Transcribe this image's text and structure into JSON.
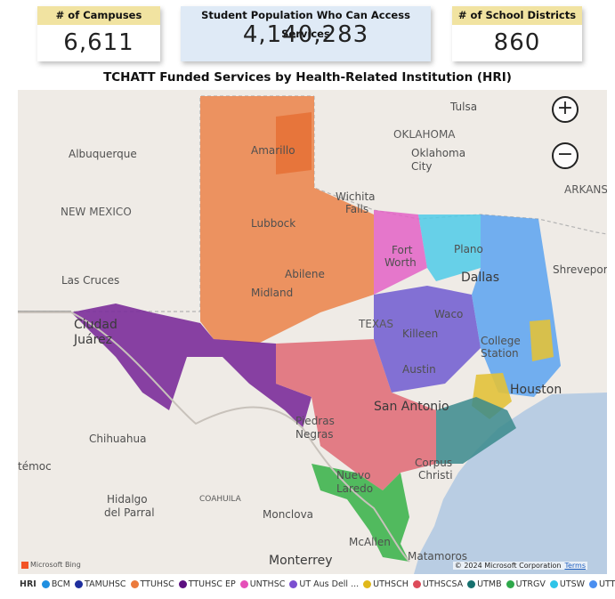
{
  "kpis": {
    "campuses": {
      "label": "# of Campuses",
      "value": "6,611"
    },
    "population": {
      "label": "Student Population Who Can Access Services",
      "value": "4,140,283"
    },
    "districts": {
      "label": "# of School Districts",
      "value": "860"
    }
  },
  "map": {
    "title": "TCHATT Funded Services by Health-Related Institution (HRI)",
    "places": {
      "tulsa": "Tulsa",
      "oklahoma": "OKLAHOMA",
      "oklahoma_city": "Oklahoma",
      "oklahoma_city2": "City",
      "albuquerque": "Albuquerque",
      "amarillo": "Amarillo",
      "new_mexico": "NEW MEXICO",
      "wichita_falls": "Wichita",
      "wichita_falls2": "Falls",
      "lubbock": "Lubbock",
      "fort_worth": "Fort",
      "fort_worth2": "Worth",
      "plano": "Plano",
      "arkansas": "ARKANS",
      "dallas": "Dallas",
      "shreveport": "Shreveport",
      "las_cruces": "Las Cruces",
      "abilene": "Abilene",
      "midland": "Midland",
      "ciudad_juarez": "Ciudad",
      "ciudad_juarez2": "Juárez",
      "waco": "Waco",
      "texas": "TEXAS",
      "killeen": "Killeen",
      "college_station": "College",
      "college_station2": "Station",
      "austin": "Austin",
      "houston": "Houston",
      "san_antonio": "San Antonio",
      "chihuahua": "Chihuahua",
      "piedras_negras": "Piedras",
      "piedras_negras2": "Negras",
      "temoc": "témoc",
      "corpus_christi": "Corpus",
      "corpus_christi2": "Christi",
      "coahuila": "COAHUILA",
      "hidalgo": "Hidalgo",
      "hidalgo2": "del Parral",
      "nuevo_laredo": "Nuevo",
      "nuevo_laredo2": "Laredo",
      "monclova": "Monclova",
      "mcallen": "McAllen",
      "matamoros": "Matamoros",
      "monterrey": "Monterrey"
    },
    "zoom_in": "+",
    "zoom_out": "−",
    "bing": "Microsoft Bing",
    "copyright": "© 2024 Microsoft Corporation",
    "terms": "Terms"
  },
  "legend": {
    "title": "HRI",
    "items": [
      {
        "label": "BCM",
        "color": "#1f8fe0"
      },
      {
        "label": "TAMUHSC",
        "color": "#1f2f9e"
      },
      {
        "label": "TTUHSC",
        "color": "#eb7a3c"
      },
      {
        "label": "TTUHSC EP",
        "color": "#5c0f80"
      },
      {
        "label": "UNTHSC",
        "color": "#e550b8"
      },
      {
        "label": "UT Aus Dell ...",
        "color": "#7b4fd0"
      },
      {
        "label": "UTHSCH",
        "color": "#e0b81a"
      },
      {
        "label": "UTHSCSA",
        "color": "#dd4b5a"
      },
      {
        "label": "UTMB",
        "color": "#16706e"
      },
      {
        "label": "UTRGV",
        "color": "#2ea84a"
      },
      {
        "label": "UTSW",
        "color": "#2ec4e8"
      },
      {
        "label": "UTTHSC",
        "color": "#4a8ef0"
      }
    ]
  }
}
